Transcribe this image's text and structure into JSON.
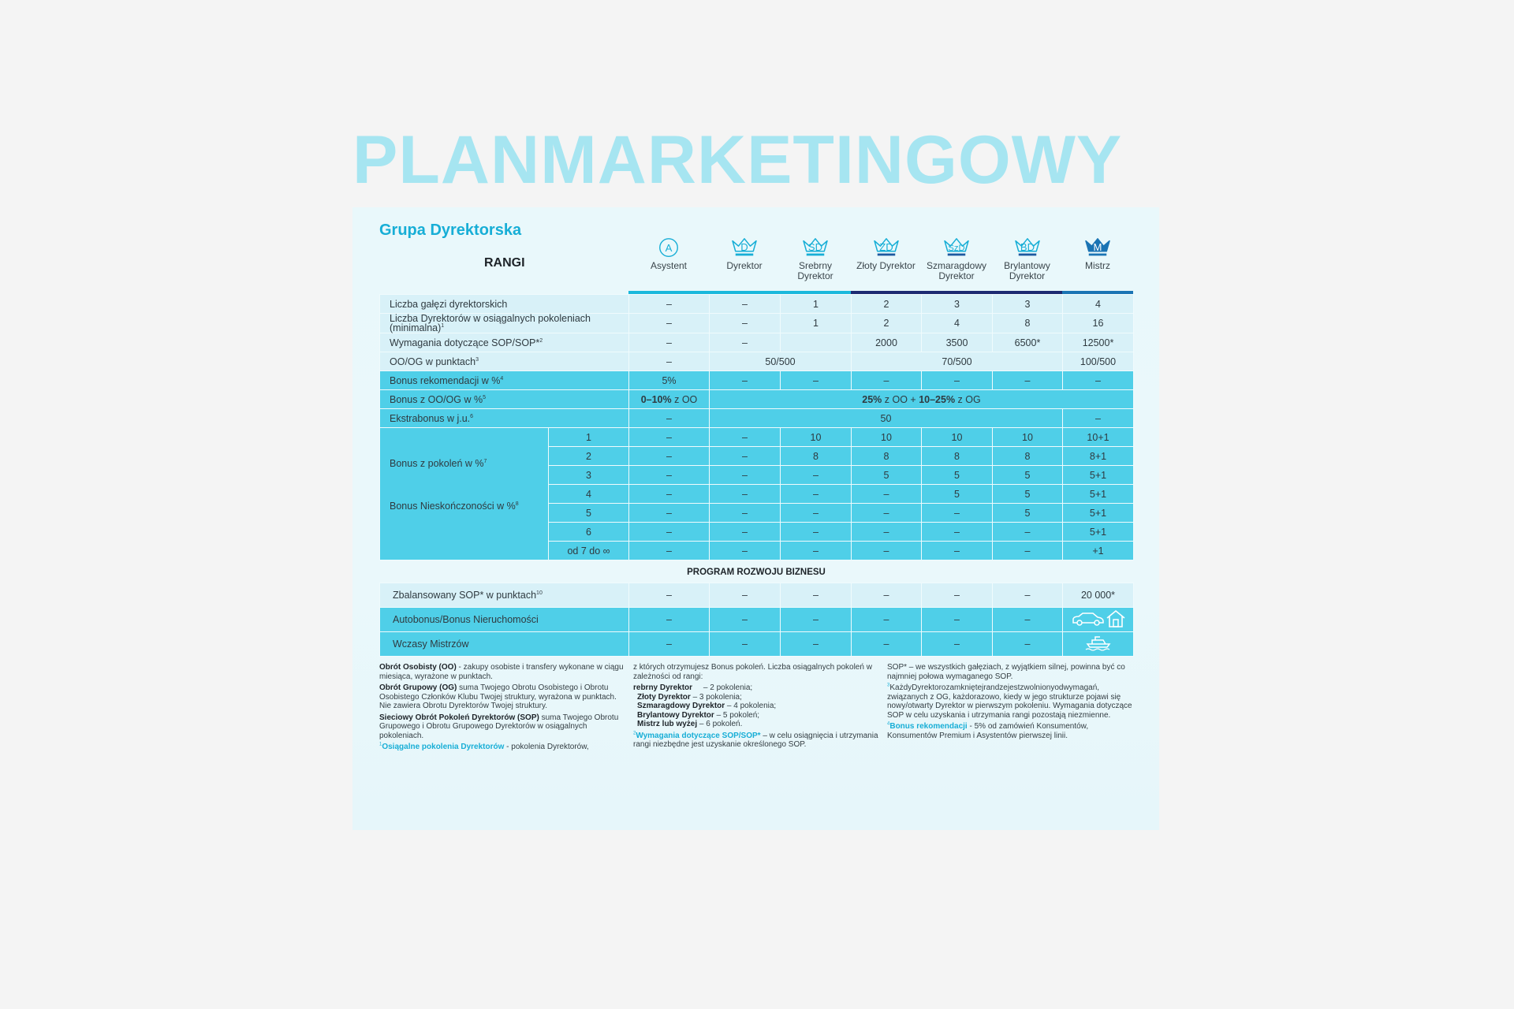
{
  "watermark": "PLANMARKETINGOWY",
  "title": "Grupa Dyrektorska",
  "rangi_label": "RANGI",
  "colors": {
    "accent": "#17aed6",
    "light_row": "#d8f1f8",
    "dark_row": "#4fcfe8",
    "bar_light": "#1ab8dc",
    "bar_dark": "#1c2a72",
    "bar_master": "#1a74b4"
  },
  "ranks": [
    {
      "abbr": "A",
      "name": "Asystent",
      "icon": "circle-badge-icon"
    },
    {
      "abbr": "D",
      "name": "Dyrektor",
      "icon": "crown-icon"
    },
    {
      "abbr": "SD",
      "name": "Srebrny Dyrektor",
      "icon": "crown-icon"
    },
    {
      "abbr": "ZD",
      "name": "Złoty Dyrektor",
      "icon": "crown-icon"
    },
    {
      "abbr": "SzD",
      "name": "Szmaragdowy Dyrektor",
      "icon": "crown-icon"
    },
    {
      "abbr": "BD",
      "name": "Brylantowy Dyrektor",
      "icon": "crown-icon"
    },
    {
      "abbr": "M",
      "name": "Mistrz",
      "icon": "crown-filled-icon"
    }
  ],
  "rows": [
    {
      "label": "Liczba gałęzi dyrektorskich",
      "sup": "",
      "style": "light",
      "cells": [
        {
          "v": "–"
        },
        {
          "v": "–"
        },
        {
          "v": "1"
        },
        {
          "v": "2"
        },
        {
          "v": "3"
        },
        {
          "v": "3"
        },
        {
          "v": "4"
        }
      ]
    },
    {
      "label": "Liczba Dyrektorów w osiągalnych pokoleniach (minimalna)",
      "sup": "1",
      "style": "light",
      "cells": [
        {
          "v": "–"
        },
        {
          "v": "–"
        },
        {
          "v": "1"
        },
        {
          "v": "2"
        },
        {
          "v": "4"
        },
        {
          "v": "8"
        },
        {
          "v": "16"
        }
      ]
    },
    {
      "label": "Wymagania dotyczące SOP/SOP*",
      "sup": "2",
      "style": "light",
      "cells": [
        {
          "v": "–"
        },
        {
          "v": "–"
        },
        {
          "v": ""
        },
        {
          "v": "2000"
        },
        {
          "v": "3500"
        },
        {
          "v": "6500*"
        },
        {
          "v": "12500*"
        }
      ]
    },
    {
      "label": "OO/OG w punktach",
      "sup": "3",
      "style": "light",
      "cells": [
        {
          "v": "–"
        },
        {
          "v": "50/500",
          "span": 2
        },
        {
          "v": "70/500",
          "span": 3
        },
        {
          "v": "100/500"
        }
      ]
    },
    {
      "label": "Bonus rekomendacji w %",
      "sup": "4",
      "style": "dark",
      "cells": [
        {
          "v": "5%"
        },
        {
          "v": "–"
        },
        {
          "v": "–"
        },
        {
          "v": "–"
        },
        {
          "v": "–"
        },
        {
          "v": "–"
        },
        {
          "v": "–"
        }
      ]
    },
    {
      "label": "Bonus z OO/OG w %",
      "sup": "5",
      "style": "dark",
      "cells": [
        {
          "parts": [
            {
              "t": "0–10%",
              "b": true
            },
            {
              "t": " z OO"
            }
          ]
        },
        {
          "span": 6,
          "parts": [
            {
              "t": "25%",
              "b": true
            },
            {
              "t": " z OO + "
            },
            {
              "t": "10–25%",
              "b": true
            },
            {
              "t": " z OG"
            }
          ]
        }
      ]
    },
    {
      "label": "Ekstrabonus w j.u.",
      "sup": "6",
      "style": "dark",
      "cells": [
        {
          "v": "–"
        },
        {
          "v": "50",
          "span": 5
        },
        {
          "v": "–"
        }
      ]
    }
  ],
  "generations": {
    "labels": [
      {
        "text": "Bonus z pokoleń w %",
        "sup": "7"
      },
      {
        "text": "Bonus Nieskończoności w %",
        "sup": "8"
      }
    ],
    "rows": [
      {
        "gen": "1",
        "values": [
          "–",
          "–",
          "10",
          "10",
          "10",
          "10",
          "10+1"
        ]
      },
      {
        "gen": "2",
        "values": [
          "–",
          "–",
          "8",
          "8",
          "8",
          "8",
          "8+1"
        ]
      },
      {
        "gen": "3",
        "values": [
          "–",
          "–",
          "–",
          "5",
          "5",
          "5",
          "5+1"
        ]
      },
      {
        "gen": "4",
        "values": [
          "–",
          "–",
          "–",
          "–",
          "5",
          "5",
          "5+1"
        ]
      },
      {
        "gen": "5",
        "values": [
          "–",
          "–",
          "–",
          "–",
          "–",
          "5",
          "5+1"
        ]
      },
      {
        "gen": "6",
        "values": [
          "–",
          "–",
          "–",
          "–",
          "–",
          "–",
          "5+1"
        ]
      },
      {
        "gen": "od 7 do ∞",
        "values": [
          "–",
          "–",
          "–",
          "–",
          "–",
          "–",
          "+1"
        ]
      }
    ]
  },
  "program": {
    "heading": "PROGRAM ROZWOJU BIZNESU",
    "rows": [
      {
        "label": "Zbalansowany SOP* w punktach",
        "sup": "10",
        "style": "light",
        "values": [
          "–",
          "–",
          "–",
          "–",
          "–",
          "–",
          "20 000*"
        ]
      },
      {
        "label": "Autobonus/Bonus Nieruchomości",
        "sup": "",
        "style": "dark",
        "values": [
          "–",
          "–",
          "–",
          "–",
          "–",
          "–"
        ],
        "icons": [
          "car-icon",
          "house-icon"
        ]
      },
      {
        "label": "Wczasy Mistrzów",
        "sup": "",
        "style": "dark",
        "values": [
          "–",
          "–",
          "–",
          "–",
          "–",
          "–"
        ],
        "icons": [
          "boat-icon"
        ]
      }
    ]
  },
  "notes": {
    "col1": [
      {
        "b": "Obrót Osobisty (OO)",
        "t": " - zakupy osobiste i transfery wykonane w ciągu miesiąca, wyrażone w punktach."
      },
      {
        "b": "Obrót Grupowy (OG)",
        "t": " suma Twojego Obrotu Osobistego i Obrotu Osobistego Członków Klubu Twojej struktury, wyrażona w punktach. Nie zawiera Obrotu Dyrektorów Twojej struktury."
      },
      {
        "b": "Sieciowy Obrót Pokoleń Dyrektorów (SOP)",
        "t": " suma Twojego Obrotu Grupowego i Obrotu Grupowego Dyrektorów w osiągalnych pokoleniach."
      },
      {
        "sup": "1",
        "hl": "Osiągalne pokolenia Dyrektorów",
        "t": " - pokolenia Dyrektorów,"
      }
    ],
    "col2_intro": "z których otrzymujesz Bonus pokoleń. Liczba osiągalnych pokoleń w zależności od rangi:",
    "col2_list": [
      {
        "b": "rebrny Dyrektor",
        "t": "     – 2 pokolenia;"
      },
      {
        "b": "Złoty Dyrektor",
        "t": " – 3 pokolenia;"
      },
      {
        "b": "Szmaragdowy Dyrektor",
        "t": " – 4 pokolenia;"
      },
      {
        "b": "Brylantowy Dyrektor",
        "t": " – 5 pokoleń;"
      },
      {
        "b": "Mistrz lub wyżej",
        "t": " – 6 pokoleń."
      }
    ],
    "col2_note": {
      "sup": "2",
      "hl": "Wymagania dotyczące SOP/SOP*",
      "t": " – w celu osiągnięcia i utrzymania rangi niezbędne jest uzyskanie określonego SOP."
    },
    "col3": [
      {
        "t": "SOP* – we wszystkich gałęziach, z wyjątkiem silnej, powinna być co najmniej połowa wymaganego SOP."
      },
      {
        "sup": "3",
        "t": "KażdyDyrektorozamkniętejrandzejestzwolnionyodwymagań, związanych z OG, każdorazowo, kiedy w jego strukturze pojawi się nowy/otwarty Dyrektor w pierwszym pokoleniu. Wymagania dotyczące SOP w celu uzyskania i utrzymania rangi pozostają niezmienne."
      },
      {
        "sup": "4",
        "hl": "Bonus rekomendacji",
        "t": " - 5% od zamówień Konsumentów, Konsumentów Premium i Asystentów pierwszej linii."
      }
    ]
  }
}
